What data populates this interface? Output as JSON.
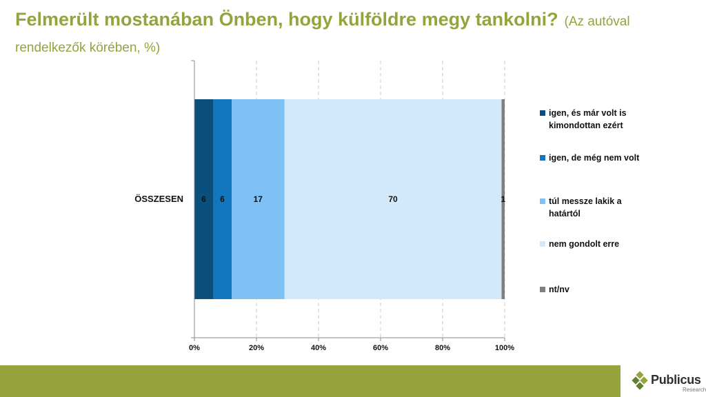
{
  "title": {
    "main": "Felmerült mostanában Önben, hogy külföldre megy tankolni?",
    "sub": "(Az autóval rendelkezők körében, %)"
  },
  "chart_data": {
    "type": "bar",
    "orientation": "horizontal",
    "stacked": true,
    "categories": [
      "ÖSSZESEN"
    ],
    "series": [
      {
        "name": "igen, és már volt is kimondottan ezért",
        "values": [
          6
        ],
        "color": "#0b4f7c"
      },
      {
        "name": "igen, de még nem volt",
        "values": [
          6
        ],
        "color": "#1277bf"
      },
      {
        "name": "túl messze lakik a határtól",
        "values": [
          17
        ],
        "color": "#7dc1f5"
      },
      {
        "name": "nem gondolt erre",
        "values": [
          70
        ],
        "color": "#d2e8fb"
      },
      {
        "name": "nt/nv",
        "values": [
          1
        ],
        "color": "#7f7f7f"
      }
    ],
    "xlim": [
      0,
      100
    ],
    "xticks": [
      "0%",
      "20%",
      "40%",
      "60%",
      "80%",
      "100%"
    ],
    "grid": "vertical-dashed",
    "legend": "right"
  },
  "logo": {
    "name": "Publicus",
    "sub": "Research"
  }
}
